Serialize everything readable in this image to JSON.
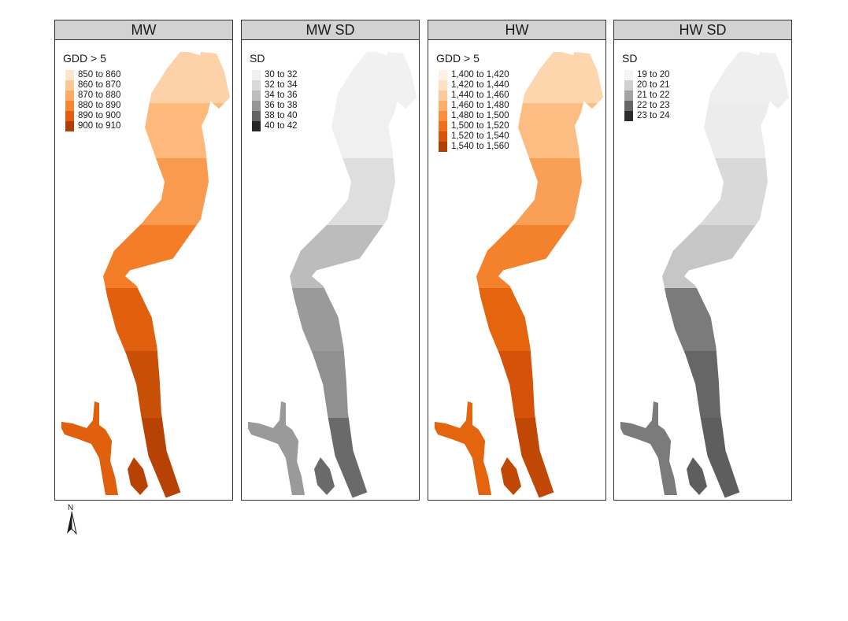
{
  "panels": [
    {
      "title": "MW",
      "legend_title": "GDD > 5",
      "legend": [
        {
          "label": "850 to 860",
          "color": "#fee6ce"
        },
        {
          "label": "860 to 870",
          "color": "#fdc895"
        },
        {
          "label": "870 to 880",
          "color": "#fdaa65"
        },
        {
          "label": "880 to 890",
          "color": "#f8852f"
        },
        {
          "label": "890 to 900",
          "color": "#e55a0c"
        },
        {
          "label": "900 to 910",
          "color": "#b23f02"
        }
      ],
      "bands": [
        "#fdd2a8",
        "#fdb87a",
        "#f99a4e",
        "#f47d27",
        "#e1600e",
        "#c84f06",
        "#b84204"
      ]
    },
    {
      "title": "MW SD",
      "legend_title": "SD",
      "legend": [
        {
          "label": "30 to 32",
          "color": "#f0f0f0"
        },
        {
          "label": "32 to 34",
          "color": "#d9d9d9"
        },
        {
          "label": "34 to 36",
          "color": "#bdbdbd"
        },
        {
          "label": "36 to 38",
          "color": "#969696"
        },
        {
          "label": "38 to 40",
          "color": "#636363"
        },
        {
          "label": "40 to 42",
          "color": "#252525"
        }
      ],
      "bands": [
        "#f1f1f1",
        "#f0f0f0",
        "#dedede",
        "#bcbcbc",
        "#9a9a9a",
        "#909090",
        "#6a6a6a"
      ]
    },
    {
      "title": "HW",
      "legend_title": "GDD > 5",
      "legend": [
        {
          "label": "1,400 to 1,420",
          "color": "#fff2e5"
        },
        {
          "label": "1,420 to 1,440",
          "color": "#fee0c2"
        },
        {
          "label": "1,440 to 1,460",
          "color": "#fdc99a"
        },
        {
          "label": "1,460 to 1,480",
          "color": "#fdae6b"
        },
        {
          "label": "1,480 to 1,500",
          "color": "#fd8f3c"
        },
        {
          "label": "1,500 to 1,520",
          "color": "#f06f18"
        },
        {
          "label": "1,520 to 1,540",
          "color": "#d85207"
        },
        {
          "label": "1,540 to 1,560",
          "color": "#b03f03"
        }
      ],
      "bands": [
        "#fdd6ae",
        "#fcbc82",
        "#f9a056",
        "#f4822c",
        "#e5650f",
        "#d55208",
        "#c14804"
      ]
    },
    {
      "title": "HW SD",
      "legend_title": "SD",
      "legend": [
        {
          "label": "19 to 20",
          "color": "#f4f4f4"
        },
        {
          "label": "20 to 21",
          "color": "#cfcfcf"
        },
        {
          "label": "21 to 22",
          "color": "#a3a3a3"
        },
        {
          "label": "22 to 23",
          "color": "#666666"
        },
        {
          "label": "23 to 24",
          "color": "#2c2c2c"
        }
      ],
      "bands": [
        "#efefef",
        "#ececec",
        "#d9d9d9",
        "#c6c6c6",
        "#7b7b7b",
        "#666666",
        "#5e5e5e"
      ]
    }
  ],
  "north_arrow": {
    "label": "N",
    "icon": "north-arrow-icon"
  }
}
